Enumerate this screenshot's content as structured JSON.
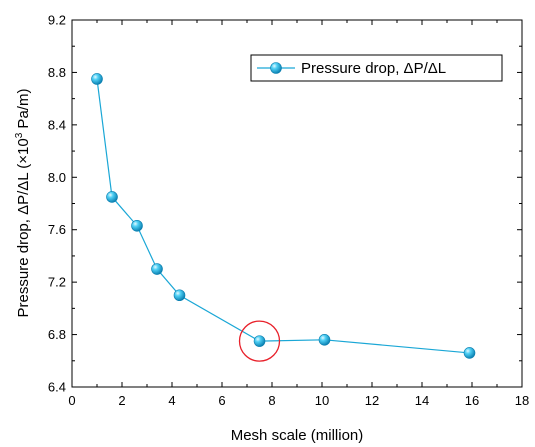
{
  "chart_data": {
    "type": "line",
    "x": [
      1.0,
      1.6,
      2.6,
      3.4,
      4.3,
      7.5,
      10.1,
      15.9
    ],
    "series": [
      {
        "name": "Pressure drop, ΔP/ΔL",
        "values": [
          8.75,
          7.85,
          7.63,
          7.3,
          7.1,
          6.75,
          6.76,
          6.66
        ],
        "color": "#1aa7d6",
        "marker": "sphere"
      }
    ],
    "xlabel": "Mesh scale (million)",
    "ylabel": {
      "pre": "Pressure drop, ΔP/ΔL (×10",
      "sup": "3",
      "post": " Pa/m)"
    },
    "xlim": [
      0,
      18
    ],
    "ylim": [
      6.4,
      9.2
    ],
    "xticks": [
      0,
      2,
      4,
      6,
      8,
      10,
      12,
      14,
      16,
      18
    ],
    "yticks": [
      6.4,
      6.8,
      7.2,
      7.6,
      8.0,
      8.4,
      8.8,
      9.2
    ],
    "grid": false,
    "legend_position": "top-right",
    "highlight": {
      "x": 7.5,
      "y": 6.75,
      "color": "#e8202a"
    }
  }
}
